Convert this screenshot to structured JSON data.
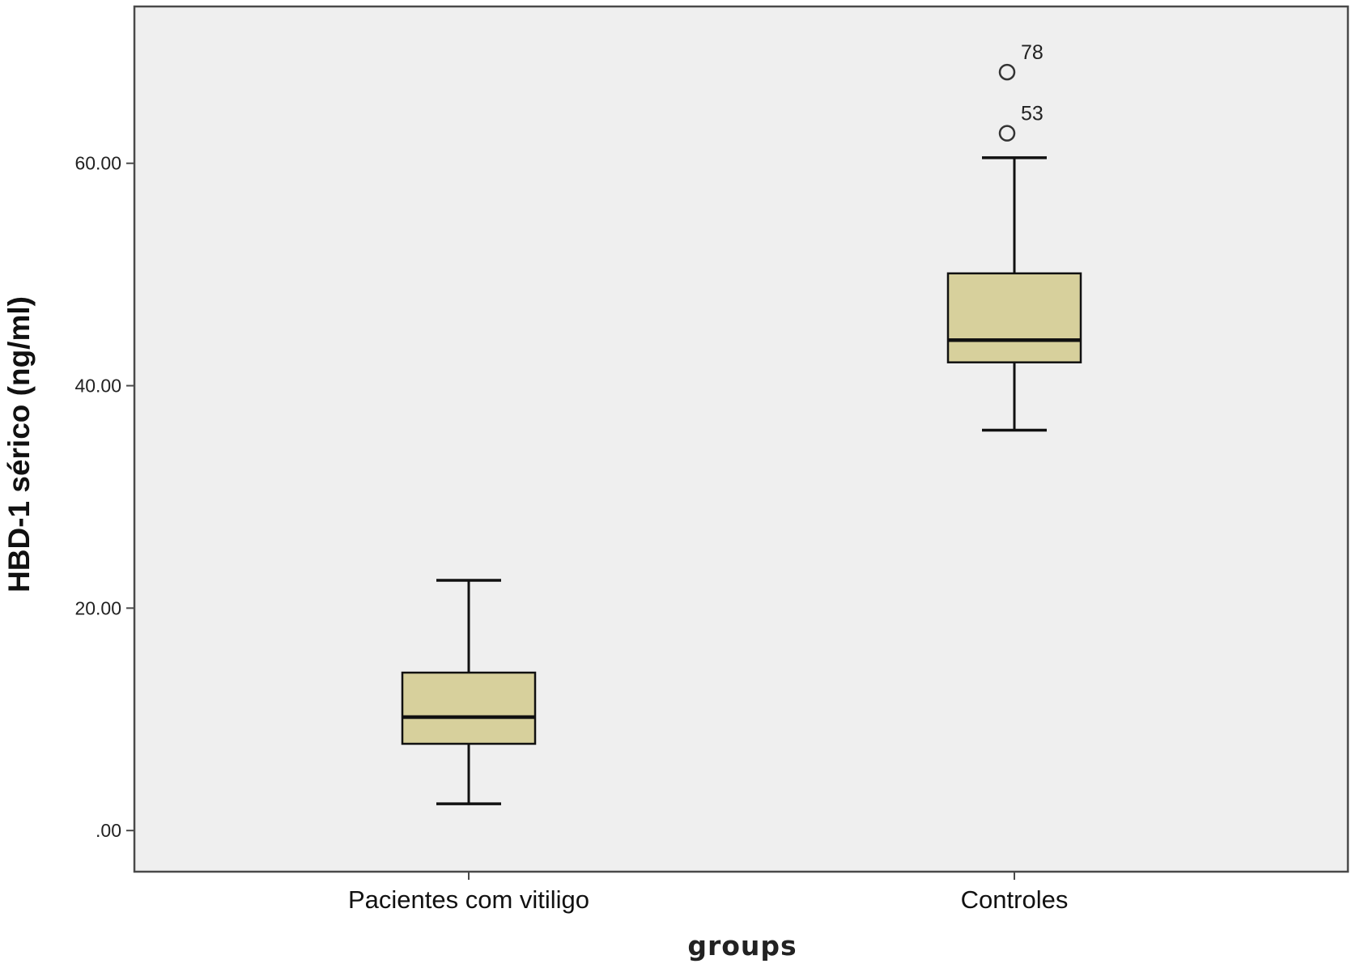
{
  "chart_data": {
    "type": "boxplot",
    "title": "",
    "xlabel": "groups",
    "ylabel": "HBD-1 sérico (ng/ml)",
    "ylim": [
      -3.7,
      74.1
    ],
    "yticks": [
      0,
      20,
      40,
      60
    ],
    "ytick_labels": [
      ".00",
      "20.00",
      "40.00",
      "60.00"
    ],
    "grid": false,
    "colors": {
      "plot_background": "#efefef",
      "box_fill": "#d7d09c",
      "line": "#111111"
    },
    "categories": [
      "Pacientes com vitiligo",
      "Controles"
    ],
    "boxes": [
      {
        "category": "Pacientes com vitiligo",
        "whisker_low": 2.4,
        "q1": 7.8,
        "median": 10.2,
        "q3": 14.2,
        "whisker_high": 22.5,
        "outliers": []
      },
      {
        "category": "Controles",
        "whisker_low": 36.0,
        "q1": 42.1,
        "median": 44.1,
        "q3": 50.1,
        "whisker_high": 60.5,
        "outliers": [
          {
            "label": "53",
            "value": 62.7
          },
          {
            "label": "78",
            "value": 68.2
          }
        ]
      }
    ]
  }
}
